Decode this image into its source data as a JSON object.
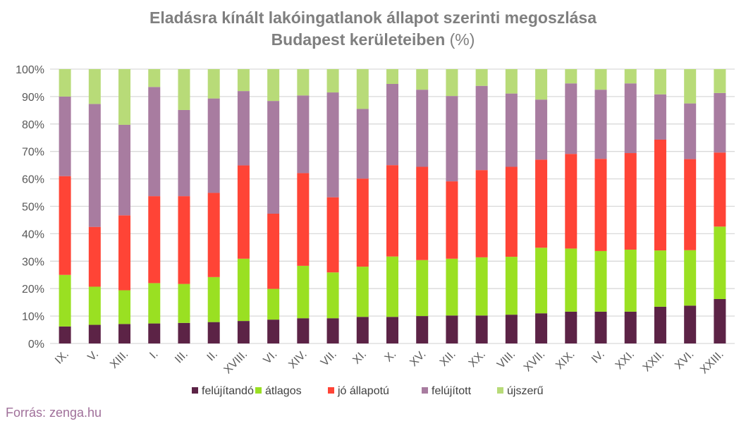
{
  "chart_data": {
    "type": "bar",
    "stacked": true,
    "title_line1": "Eladásra kínált lakóingatlanok állapot szerinti megoszlása",
    "title_line2": "Budapest kerületeiben",
    "title_unit": "(%)",
    "ylim": [
      0,
      100
    ],
    "yticks": [
      "0%",
      "10%",
      "20%",
      "30%",
      "40%",
      "50%",
      "60%",
      "70%",
      "80%",
      "90%",
      "100%"
    ],
    "grid": true,
    "legend_placement": "bottom",
    "categories": [
      "IX.",
      "V.",
      "XIII.",
      "I.",
      "III.",
      "II.",
      "XVIII.",
      "VI.",
      "XIV.",
      "VII.",
      "XI.",
      "X.",
      "XV.",
      "XII.",
      "XX.",
      "VIII.",
      "XVII.",
      "XIX.",
      "IV.",
      "XXI.",
      "XXII.",
      "XVI.",
      "XXIII."
    ],
    "series": [
      {
        "name": "felújítandó",
        "color": "#5c2346",
        "values": [
          6.2,
          6.8,
          7.1,
          7.3,
          7.5,
          7.8,
          8.2,
          8.7,
          9.2,
          9.2,
          9.7,
          9.7,
          10.0,
          10.2,
          10.2,
          10.5,
          11.0,
          11.6,
          11.6,
          11.6,
          13.4,
          13.8,
          16.2
        ]
      },
      {
        "name": "átlagos",
        "color": "#9ae022",
        "values": [
          18.8,
          13.9,
          12.3,
          14.7,
          14.2,
          16.4,
          22.7,
          11.2,
          19.1,
          16.7,
          18.3,
          22.0,
          20.4,
          20.7,
          21.2,
          21.1,
          23.9,
          23.0,
          22.1,
          22.6,
          20.5,
          20.2,
          26.4
        ]
      },
      {
        "name": "jó állapotú",
        "color": "#ff4436",
        "values": [
          36.0,
          21.8,
          27.3,
          31.7,
          32.0,
          30.7,
          34.0,
          27.4,
          33.8,
          27.4,
          32.1,
          33.3,
          34.0,
          28.2,
          31.8,
          32.8,
          32.1,
          34.5,
          33.6,
          35.2,
          40.4,
          33.2,
          27.0
        ]
      },
      {
        "name": "felújított",
        "color": "#a87ca0",
        "values": [
          29.0,
          44.8,
          33.0,
          39.8,
          31.4,
          34.4,
          27.1,
          41.1,
          28.3,
          38.2,
          25.4,
          29.6,
          28.1,
          31.1,
          30.7,
          26.7,
          21.9,
          25.7,
          25.2,
          25.4,
          16.5,
          20.3,
          21.7
        ]
      },
      {
        "name": "újszerű",
        "color": "#b8db78",
        "values": [
          10.0,
          12.7,
          20.3,
          6.5,
          14.9,
          10.7,
          8.0,
          11.6,
          9.6,
          8.5,
          14.5,
          5.4,
          7.5,
          9.8,
          6.1,
          8.9,
          11.1,
          5.2,
          7.5,
          5.2,
          9.2,
          12.5,
          8.7
        ]
      }
    ]
  },
  "source": "Forrás: zenga.hu"
}
